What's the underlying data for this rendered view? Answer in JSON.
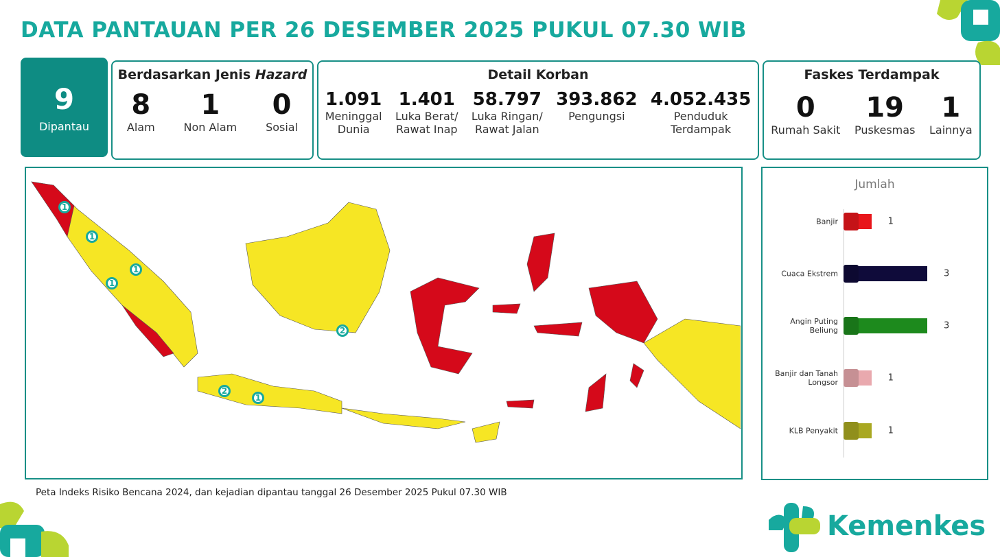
{
  "title": "DATA PANTAUAN PER 26 DESEMBER 2025 PUKUL 07.30 WIB",
  "monitored": {
    "value": "9",
    "label": "Dipantau"
  },
  "hazard": {
    "heading": "Berdasarkan Jenis ",
    "heading_italic": "Hazard",
    "items": [
      {
        "value": "8",
        "label": "Alam"
      },
      {
        "value": "1",
        "label": "Non Alam"
      },
      {
        "value": "0",
        "label": "Sosial"
      }
    ]
  },
  "victims": {
    "heading": "Detail Korban",
    "items": [
      {
        "value": "1.091",
        "label": "Meninggal\nDunia"
      },
      {
        "value": "1.401",
        "label": "Luka Berat/\nRawat Inap"
      },
      {
        "value": "58.797",
        "label": "Luka Ringan/\nRawat Jalan"
      },
      {
        "value": "393.862",
        "label": "Pengungsi"
      },
      {
        "value": "4.052.435",
        "label": "Penduduk\nTerdampak"
      }
    ]
  },
  "facilities": {
    "heading": "Faskes Terdampak",
    "items": [
      {
        "value": "0",
        "label": "Rumah Sakit"
      },
      {
        "value": "19",
        "label": "Puskesmas"
      },
      {
        "value": "1",
        "label": "Lainnya"
      }
    ]
  },
  "map": {
    "markers": [
      "1",
      "1",
      "1",
      "1",
      "2",
      "2",
      "1"
    ]
  },
  "chart_data": {
    "type": "bar",
    "orientation": "horizontal",
    "title": "Jumlah",
    "categories": [
      "Banjir",
      "Cuaca Ekstrem",
      "Angin Puting\nBeliung",
      "Banjir dan Tanah\nLongsor",
      "KLB Penyakit"
    ],
    "values": [
      1,
      3,
      3,
      1,
      1
    ],
    "colors": [
      "#e8161b",
      "#0f0b3a",
      "#1d8a1d",
      "#e9a9ae",
      "#a9a821"
    ]
  },
  "caption": "Peta Indeks Risiko Bencana 2024, dan kejadian dipantau tanggal 26 Desember 2025 Pukul 07.30 WIB",
  "logo": "Kemenkes"
}
